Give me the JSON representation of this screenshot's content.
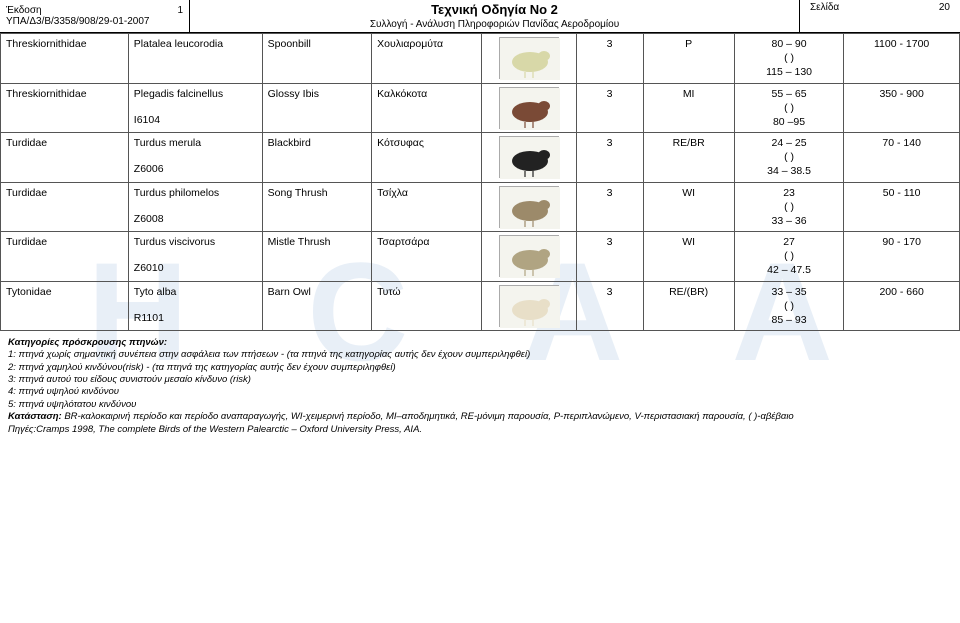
{
  "header": {
    "edition_label": "Έκδοση",
    "edition_no": "1",
    "docref": "ΥΠΑ/Δ3/Β/3358/908/29-01-2007",
    "title": "Τεχνική  Οδηγία  Νο 2",
    "subtitle": "Συλλογή - Ανάλυση Πληροφοριών Πανίδας Αεροδρομίου",
    "page_label": "Σελίδα",
    "page_no": "20"
  },
  "watermark": "H C A A",
  "rows": [
    {
      "family": "Threskiornithidae",
      "sci": "Platalea leucorodia",
      "eng": "Spoonbill",
      "gr": "Χουλιαρομύτα",
      "img_fill": "#d8d8a8",
      "risk": "3",
      "status": "P",
      "len_1": "80 – 90",
      "len_2": "( )",
      "len_3": "115 – 130",
      "wing": "1100 - 1700",
      "code": ""
    },
    {
      "family": "Threskiornithidae",
      "sci": "Plegadis falcinellus",
      "eng": "Glossy Ibis",
      "gr": "Καλκόκοτα",
      "img_fill": "#7a4a36",
      "risk": "3",
      "status": "MI",
      "len_1": "55 – 65",
      "len_2": "( )",
      "len_3": "80 –95",
      "wing": "350 - 900",
      "code": "I6104"
    },
    {
      "family": "Turdidae",
      "sci": "Turdus merula",
      "eng": "Blackbird",
      "gr": "Κότσυφας",
      "img_fill": "#222222",
      "risk": "3",
      "status": "RE/BR",
      "len_1": "24 – 25",
      "len_2": "( )",
      "len_3": "34 – 38.5",
      "wing": "70 - 140",
      "code": "Z6006"
    },
    {
      "family": "Turdidae",
      "sci": "Turdus philomelos",
      "eng": "Song Thrush",
      "gr": "Τσίχλα",
      "img_fill": "#9c8a6a",
      "risk": "3",
      "status": "WI",
      "len_1": "23",
      "len_2": "( )",
      "len_3": "33 – 36",
      "wing": "50 - 110",
      "code": "Z6008"
    },
    {
      "family": "Turdidae",
      "sci": "Turdus viscivorus",
      "eng": "Mistle Thrush",
      "gr": "Τσαρτσάρα",
      "img_fill": "#b0a482",
      "risk": "3",
      "status": "WI",
      "len_1": "27",
      "len_2": "( )",
      "len_3": "42 – 47.5",
      "wing": "90 - 170",
      "code": "Z6010"
    },
    {
      "family": "Tytonidae",
      "sci": "Tyto alba",
      "eng": "Barn Owl",
      "gr": "Τυτώ",
      "img_fill": "#e8dfc8",
      "risk": "3",
      "status": "RE/(BR)",
      "len_1": "33 – 35",
      "len_2": "( )",
      "len_3": "85 – 93",
      "wing": "200 - 660",
      "code": "R1101"
    }
  ],
  "footer": {
    "cat_title": "Κατηγορίες πρόσκρουσης πτηνών:",
    "c1": "1: πτηνά χωρίς σημαντική συνέπεια στην ασφάλεια των πτήσεων  - (τα πτηνά της κατηγορίας αυτής δεν έχουν συμπεριληφθεί)",
    "c2": "2: πτηνά χαμηλού κινδύνου(risk)  - (τα πτηνά της κατηγορίας αυτής δεν έχουν συμπεριληφθεί)",
    "c3": "3: πτηνά αυτού του είδους συνιστούν μεσαίο  κίνδυνο (risk)",
    "c4": "4: πτηνά υψηλού κινδύνου",
    "c5": "5: πτηνά υψηλότατου κινδύνου",
    "status_label": "Κατάσταση:",
    "status_text": " BR-καλοκαιρινή περίοδο και περίοδο αναπαραγωγής, WI-χειμερινή περίοδο, MI–αποδημητικά, RE-μόνιμη παρουσία,  P-περιπλανώμενο, V-περιστασιακή παρουσία, ( )-αβέβαιο",
    "sources": "Πηγές:Cramps 1998, The complete Birds of the Western Palearctic – Oxford University Press, AIA."
  },
  "colors": {
    "border": "#555555",
    "bg": "#ffffff",
    "watermark": "rgba(100,150,200,0.15)"
  }
}
